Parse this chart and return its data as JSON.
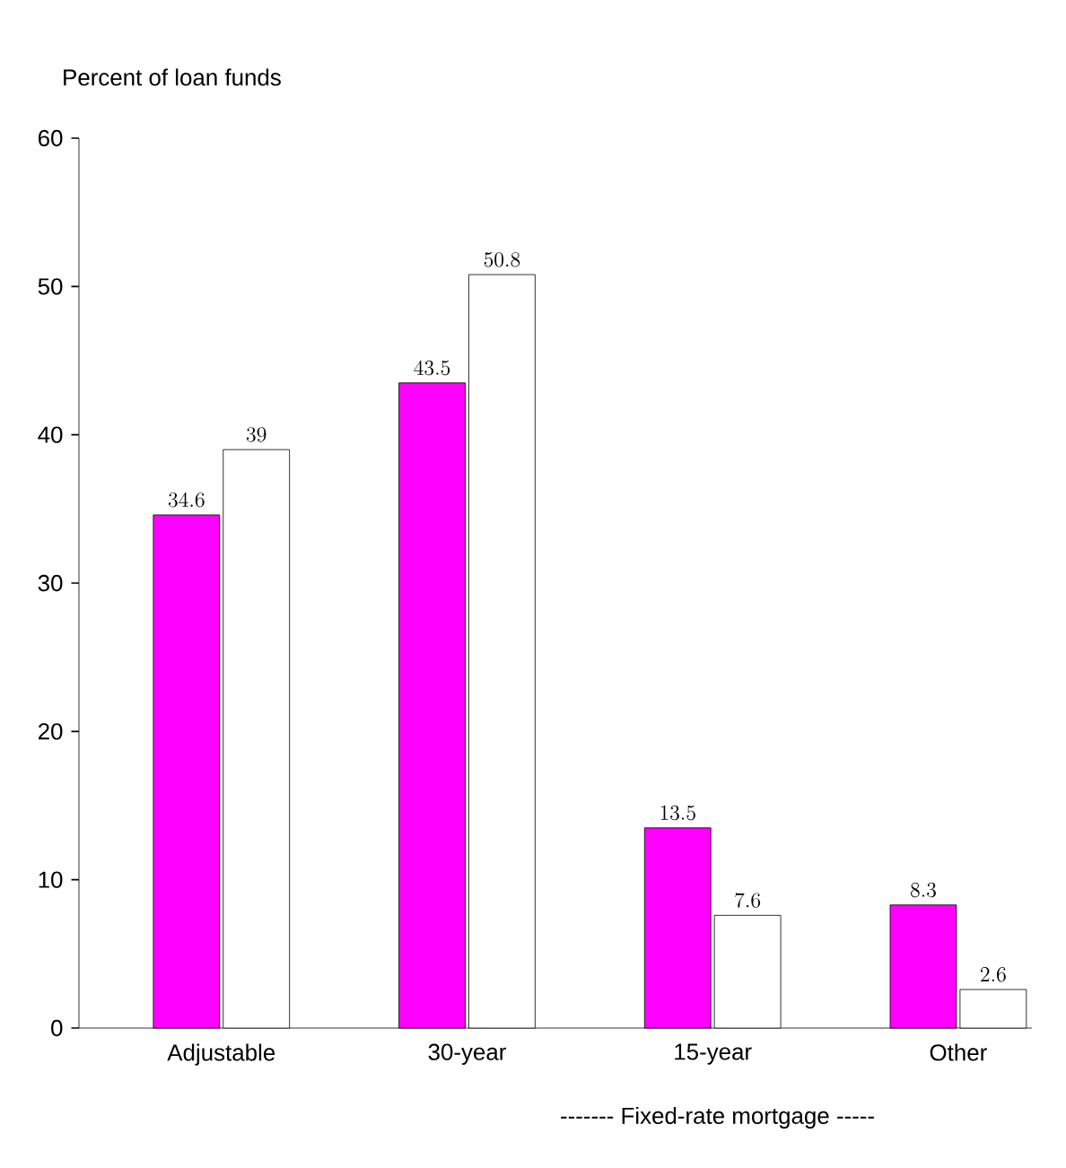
{
  "chart_data": {
    "type": "bar",
    "ylabel": "Percent of loan funds",
    "categories": [
      "Adjustable",
      "30-year",
      "15-year",
      "Other"
    ],
    "series": [
      {
        "color": "#ff00ff",
        "values": [
          34.6,
          43.5,
          13.5,
          8.3
        ]
      },
      {
        "color": "#ffffff",
        "values": [
          39,
          50.8,
          7.6,
          2.6
        ]
      }
    ],
    "ylim": [
      0,
      60
    ],
    "yticks": [
      0,
      10,
      20,
      30,
      40,
      50,
      60
    ],
    "data_labels": true,
    "annotations": [
      "------- Fixed-rate mortgage -----"
    ]
  }
}
